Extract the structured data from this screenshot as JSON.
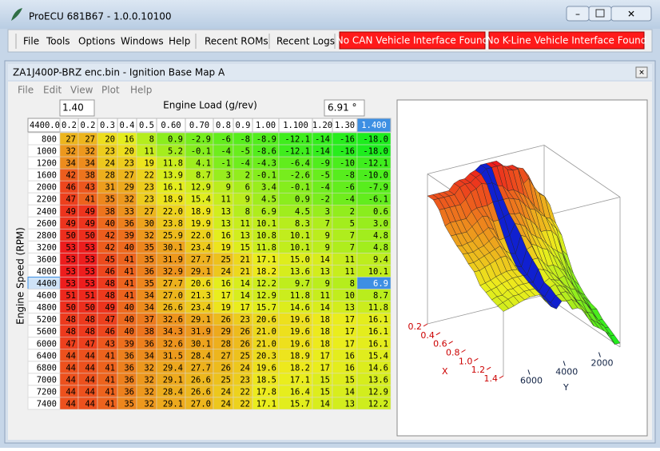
{
  "app": {
    "title": "ProECU 681B67 - 1.0.0.10100",
    "menu": [
      "File",
      "Tools",
      "Options",
      "Windows",
      "Help"
    ],
    "buttons": [
      "Recent ROMs",
      "Recent Logs"
    ],
    "alerts": [
      "No CAN Vehicle Interface Found",
      "No K-Line Vehicle Interface Found"
    ]
  },
  "map_window": {
    "title": "ZA1J400P-BRZ enc.bin - Ignition Base Map A",
    "menu": [
      "File",
      "Edit",
      "View",
      "Plot",
      "Help"
    ],
    "x_value": "1.40",
    "x_axis_label": "Engine Load (g/rev)",
    "cell_value": "6.91 °",
    "y_value": "4400.0",
    "y_axis_label": "Engine Speed (RPM)"
  },
  "table": {
    "columns": [
      "0.2",
      "0.2",
      "0.3",
      "0.4",
      "0.5",
      "0.60",
      "0.70",
      "0.8",
      "0.9",
      "1.00",
      "1.100",
      "1.20",
      "1.30",
      "1.400"
    ],
    "selected_row": 12,
    "selected_column": 13,
    "rows": [
      {
        "label": "800",
        "cells": [
          "27",
          "27",
          "20",
          "16",
          "8",
          "0.9",
          "-2.9",
          "-6",
          "-8",
          "-8.9",
          "-12.1",
          "-14",
          "-16",
          "-18.0"
        ]
      },
      {
        "label": "1000",
        "cells": [
          "32",
          "32",
          "23",
          "20",
          "11",
          "5.2",
          "-0.1",
          "-4",
          "-5",
          "-8.6",
          "-12.1",
          "-14",
          "-16",
          "-18.0"
        ]
      },
      {
        "label": "1200",
        "cells": [
          "34",
          "34",
          "24",
          "23",
          "19",
          "11.8",
          "4.1",
          "-1",
          "-4",
          "-4.3",
          "-6.4",
          "-9",
          "-10",
          "-12.1"
        ]
      },
      {
        "label": "1600",
        "cells": [
          "42",
          "38",
          "28",
          "27",
          "22",
          "13.9",
          "8.7",
          "3",
          "2",
          "-0.1",
          "-2.6",
          "-5",
          "-8",
          "-10.0"
        ]
      },
      {
        "label": "2000",
        "cells": [
          "46",
          "43",
          "31",
          "29",
          "23",
          "16.1",
          "12.9",
          "9",
          "6",
          "3.4",
          "-0.1",
          "-4",
          "-6",
          "-7.9"
        ]
      },
      {
        "label": "2200",
        "cells": [
          "47",
          "41",
          "35",
          "32",
          "23",
          "18.9",
          "15.4",
          "11",
          "9",
          "4.5",
          "0.9",
          "-2",
          "-4",
          "-6.1"
        ]
      },
      {
        "label": "2400",
        "cells": [
          "49",
          "49",
          "38",
          "33",
          "27",
          "22.0",
          "18.9",
          "13",
          "8",
          "6.9",
          "4.5",
          "3",
          "2",
          "0.6"
        ]
      },
      {
        "label": "2600",
        "cells": [
          "49",
          "49",
          "40",
          "36",
          "30",
          "23.8",
          "19.9",
          "13",
          "11",
          "10.1",
          "8.3",
          "7",
          "5",
          "3.0"
        ]
      },
      {
        "label": "2800",
        "cells": [
          "50",
          "50",
          "42",
          "39",
          "32",
          "25.9",
          "22.0",
          "16",
          "13",
          "10.8",
          "10.1",
          "9",
          "7",
          "4.8"
        ]
      },
      {
        "label": "3200",
        "cells": [
          "53",
          "53",
          "42",
          "40",
          "35",
          "30.1",
          "23.4",
          "19",
          "15",
          "11.8",
          "10.1",
          "9",
          "7",
          "4.8"
        ]
      },
      {
        "label": "3600",
        "cells": [
          "53",
          "53",
          "45",
          "41",
          "35",
          "31.9",
          "27.7",
          "25",
          "21",
          "17.1",
          "15.0",
          "14",
          "11",
          "9.4"
        ]
      },
      {
        "label": "4000",
        "cells": [
          "53",
          "53",
          "46",
          "41",
          "36",
          "32.9",
          "29.1",
          "24",
          "21",
          "18.2",
          "13.6",
          "13",
          "11",
          "10.1"
        ]
      },
      {
        "label": "4400",
        "cells": [
          "53",
          "53",
          "48",
          "41",
          "35",
          "27.7",
          "20.6",
          "16",
          "14",
          "12.2",
          "9.7",
          "9",
          "8",
          "6.9"
        ]
      },
      {
        "label": "4600",
        "cells": [
          "51",
          "51",
          "48",
          "41",
          "34",
          "27.0",
          "21.3",
          "17",
          "14",
          "12.9",
          "11.8",
          "11",
          "10",
          "8.7"
        ]
      },
      {
        "label": "4800",
        "cells": [
          "50",
          "50",
          "49",
          "40",
          "34",
          "26.6",
          "23.4",
          "19",
          "17",
          "15.7",
          "14.6",
          "14",
          "13",
          "11.8"
        ]
      },
      {
        "label": "5200",
        "cells": [
          "48",
          "48",
          "47",
          "40",
          "37",
          "32.6",
          "29.1",
          "26",
          "23",
          "20.6",
          "19.6",
          "18",
          "17",
          "16.1"
        ]
      },
      {
        "label": "5600",
        "cells": [
          "48",
          "48",
          "46",
          "40",
          "38",
          "34.3",
          "31.9",
          "29",
          "26",
          "21.0",
          "19.6",
          "18",
          "17",
          "16.1"
        ]
      },
      {
        "label": "6000",
        "cells": [
          "47",
          "47",
          "43",
          "39",
          "36",
          "32.6",
          "30.1",
          "28",
          "26",
          "21.0",
          "19.6",
          "18",
          "17",
          "16.1"
        ]
      },
      {
        "label": "6400",
        "cells": [
          "44",
          "44",
          "41",
          "36",
          "34",
          "31.5",
          "28.4",
          "27",
          "25",
          "20.3",
          "18.9",
          "17",
          "16",
          "15.4"
        ]
      },
      {
        "label": "6800",
        "cells": [
          "44",
          "44",
          "41",
          "36",
          "32",
          "29.4",
          "27.7",
          "26",
          "24",
          "19.6",
          "18.2",
          "17",
          "16",
          "14.6"
        ]
      },
      {
        "label": "7000",
        "cells": [
          "44",
          "44",
          "41",
          "36",
          "32",
          "29.1",
          "26.6",
          "25",
          "23",
          "18.5",
          "17.1",
          "15",
          "15",
          "13.6"
        ]
      },
      {
        "label": "7200",
        "cells": [
          "44",
          "44",
          "41",
          "36",
          "32",
          "28.4",
          "26.6",
          "24",
          "22",
          "17.8",
          "16.4",
          "15",
          "14",
          "12.9"
        ]
      },
      {
        "label": "7400",
        "cells": [
          "44",
          "44",
          "41",
          "35",
          "32",
          "29.1",
          "27.0",
          "24",
          "22",
          "17.1",
          "15.7",
          "14",
          "13",
          "12.2"
        ]
      }
    ]
  },
  "plot": {
    "x_label": "X",
    "x_ticks": [
      "0.2",
      "0.4",
      "0.6",
      "0.8",
      "1.0",
      "1.2",
      "1.4"
    ],
    "y_label": "Y",
    "y_ticks": [
      "2000",
      "4000",
      "6000"
    ]
  }
}
